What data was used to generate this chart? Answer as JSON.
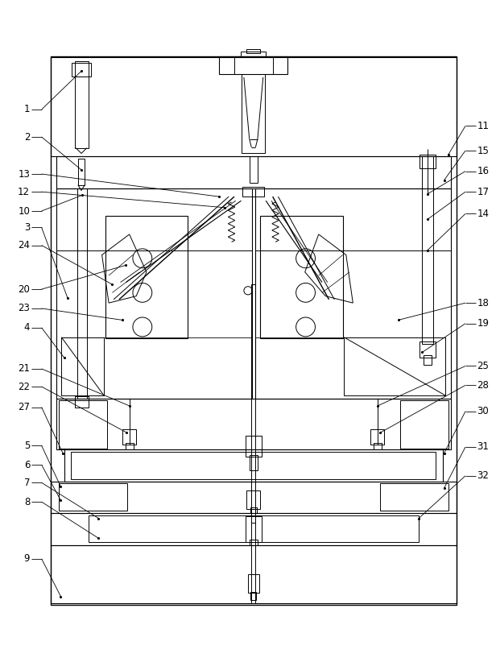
{
  "background": "#ffffff",
  "line_color": "#000000",
  "fig_width": 6.16,
  "fig_height": 8.17,
  "dpi": 100
}
